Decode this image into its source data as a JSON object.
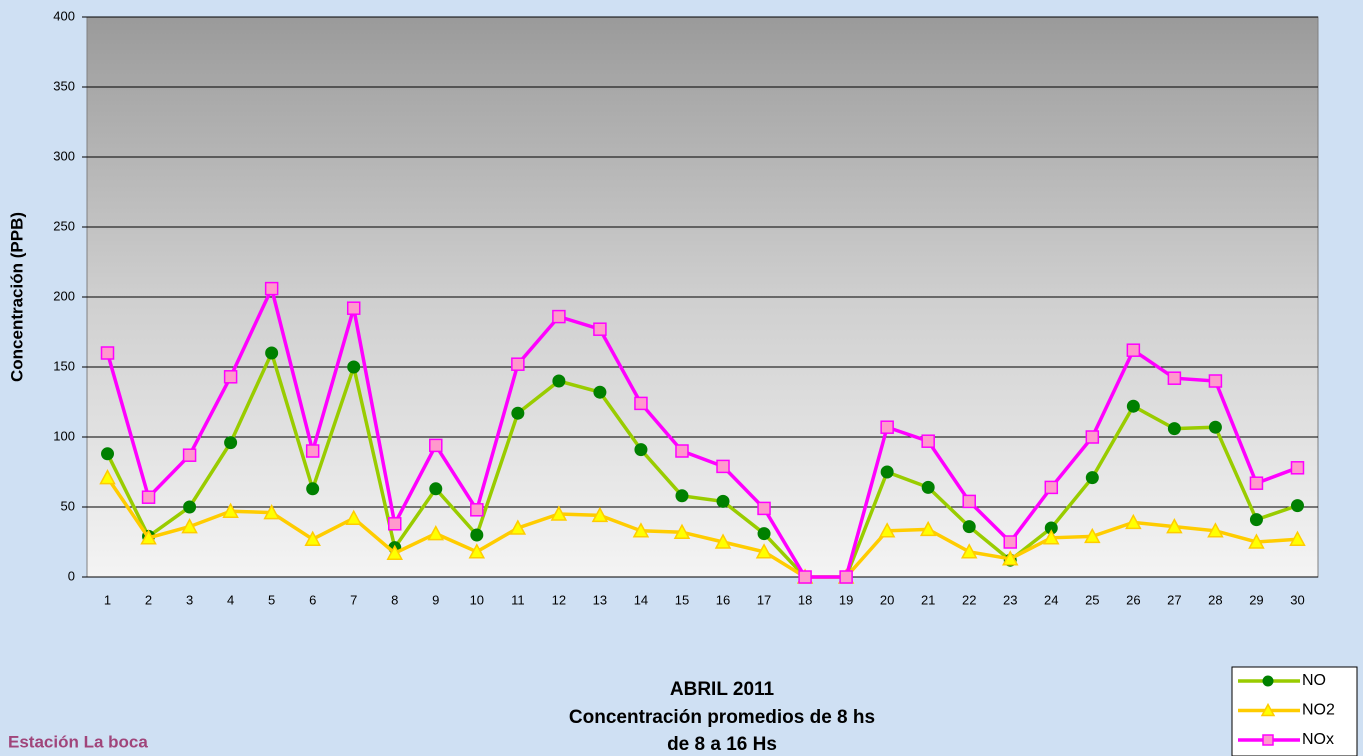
{
  "chart_data": {
    "type": "line",
    "title": [
      "ABRIL 2011",
      "Concentración promedios de 8 hs",
      "de 8 a 16 Hs"
    ],
    "annotation": "Estación La boca",
    "y_label": "Concentración (PPB)",
    "categories": [
      "1",
      "2",
      "3",
      "4",
      "5",
      "6",
      "7",
      "8",
      "9",
      "10",
      "11",
      "12",
      "13",
      "14",
      "15",
      "16",
      "17",
      "18",
      "19",
      "20",
      "21",
      "22",
      "23",
      "24",
      "25",
      "26",
      "27",
      "28",
      "29",
      "30"
    ],
    "series": [
      {
        "name": "NO",
        "color": "#99cc00",
        "marker": "circle",
        "marker_color": "#008000",
        "values": [
          88,
          29,
          50,
          96,
          160,
          63,
          150,
          21,
          63,
          30,
          117,
          140,
          132,
          91,
          58,
          54,
          31,
          0,
          0,
          75,
          64,
          36,
          12,
          35,
          71,
          122,
          106,
          107,
          41,
          51
        ]
      },
      {
        "name": "NO2",
        "color": "#ffcc00",
        "marker": "triangle",
        "marker_color": "#ffff00",
        "values": [
          71,
          28,
          36,
          47,
          46,
          27,
          42,
          17,
          31,
          18,
          35,
          45,
          44,
          33,
          32,
          25,
          18,
          0,
          0,
          33,
          34,
          18,
          13,
          28,
          29,
          39,
          36,
          33,
          25,
          27
        ]
      },
      {
        "name": "NOx",
        "color": "#ff00ff",
        "marker": "square",
        "marker_color": "#ff99cc",
        "values": [
          160,
          57,
          87,
          143,
          206,
          90,
          192,
          38,
          94,
          48,
          152,
          186,
          177,
          124,
          90,
          79,
          49,
          0,
          0,
          107,
          97,
          54,
          25,
          64,
          100,
          162,
          142,
          140,
          67,
          78
        ]
      }
    ],
    "ylim": [
      0,
      400
    ],
    "yticks": [
      0,
      50,
      100,
      150,
      200,
      250,
      300,
      350,
      400
    ],
    "grid": true,
    "legend": "bottom-right"
  }
}
